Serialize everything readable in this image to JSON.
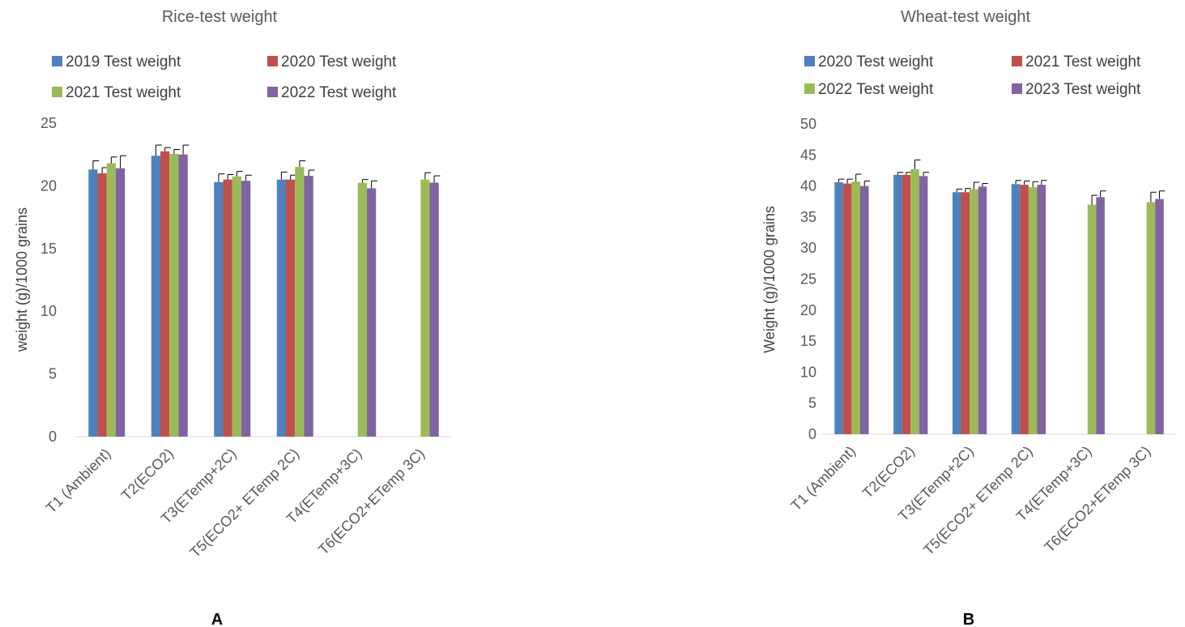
{
  "colors": {
    "blue": "#4f81bd",
    "red": "#c0504d",
    "green": "#9bbb59",
    "purple": "#8064a2"
  },
  "chart_data": [
    {
      "type": "bar",
      "panel_label": "A",
      "title": "Rice-test weight",
      "ylabel": "weight (g)/1000 grains",
      "xlabel": "",
      "ylim": [
        0,
        25
      ],
      "yticks": [
        0,
        5,
        10,
        15,
        20,
        25
      ],
      "grid": false,
      "legend_position": "top",
      "categories": [
        "T1 (Ambient)",
        "T2(ECO2)",
        "T3(ETemp+2C)",
        "T5(ECO2+ ETemp 2C)",
        "T4(ETemp+3C)",
        "T6(ECO2+ETemp 3C)"
      ],
      "series": [
        {
          "name": "2019 Test weight",
          "color": "#4f81bd",
          "values": [
            21.3,
            22.4,
            20.3,
            20.5,
            0,
            0
          ],
          "errors": [
            0.7,
            0.85,
            0.65,
            0.6,
            0,
            0
          ]
        },
        {
          "name": "2020 Test weight",
          "color": "#c0504d",
          "values": [
            21.0,
            22.75,
            20.5,
            20.5,
            0,
            0
          ],
          "errors": [
            0.45,
            0.3,
            0.4,
            0.35,
            0,
            0
          ]
        },
        {
          "name": "2021 Test weight",
          "color": "#9bbb59",
          "values": [
            21.8,
            22.55,
            20.75,
            21.5,
            20.25,
            20.5
          ],
          "errors": [
            0.5,
            0.35,
            0.4,
            0.5,
            0.25,
            0.55
          ]
        },
        {
          "name": "2022 Test weight",
          "color": "#8064a2",
          "values": [
            21.4,
            22.5,
            20.4,
            20.8,
            19.8,
            20.25
          ],
          "errors": [
            1.0,
            0.75,
            0.45,
            0.45,
            0.6,
            0.55
          ]
        }
      ]
    },
    {
      "type": "bar",
      "panel_label": "B",
      "title": "Wheat-test weight",
      "ylabel": "Weight (g)/1000 grains",
      "xlabel": "",
      "ylim": [
        0,
        50
      ],
      "yticks": [
        0,
        5,
        10,
        15,
        20,
        25,
        30,
        35,
        40,
        45,
        50
      ],
      "grid": false,
      "legend_position": "top",
      "categories": [
        "T1 (Ambient)",
        "T2(ECO2)",
        "T3(ETemp+2C)",
        "T5(ECO2+ ETemp 2C)",
        "T4(ETemp+3C)",
        "T6(ECO2+ETemp 3C)"
      ],
      "series": [
        {
          "name": "2020 Test weight",
          "color": "#4f81bd",
          "values": [
            40.6,
            41.8,
            39.0,
            40.3,
            0,
            0
          ],
          "errors": [
            0.5,
            0.4,
            0.5,
            0.6,
            0,
            0
          ]
        },
        {
          "name": "2021 Test weight",
          "color": "#c0504d",
          "values": [
            40.4,
            41.8,
            39.0,
            40.2,
            0,
            0
          ],
          "errors": [
            0.7,
            0.4,
            0.6,
            0.6,
            0,
            0
          ]
        },
        {
          "name": "2022 Test weight",
          "color": "#9bbb59",
          "values": [
            40.7,
            42.7,
            39.5,
            39.8,
            37.0,
            37.4
          ],
          "errors": [
            1.2,
            1.5,
            1.1,
            0.9,
            1.5,
            1.6
          ]
        },
        {
          "name": "2023 Test weight",
          "color": "#8064a2",
          "values": [
            40.0,
            41.6,
            39.9,
            40.2,
            38.2,
            37.9
          ],
          "errors": [
            0.8,
            0.6,
            0.5,
            0.7,
            1.0,
            1.3
          ]
        }
      ]
    }
  ]
}
